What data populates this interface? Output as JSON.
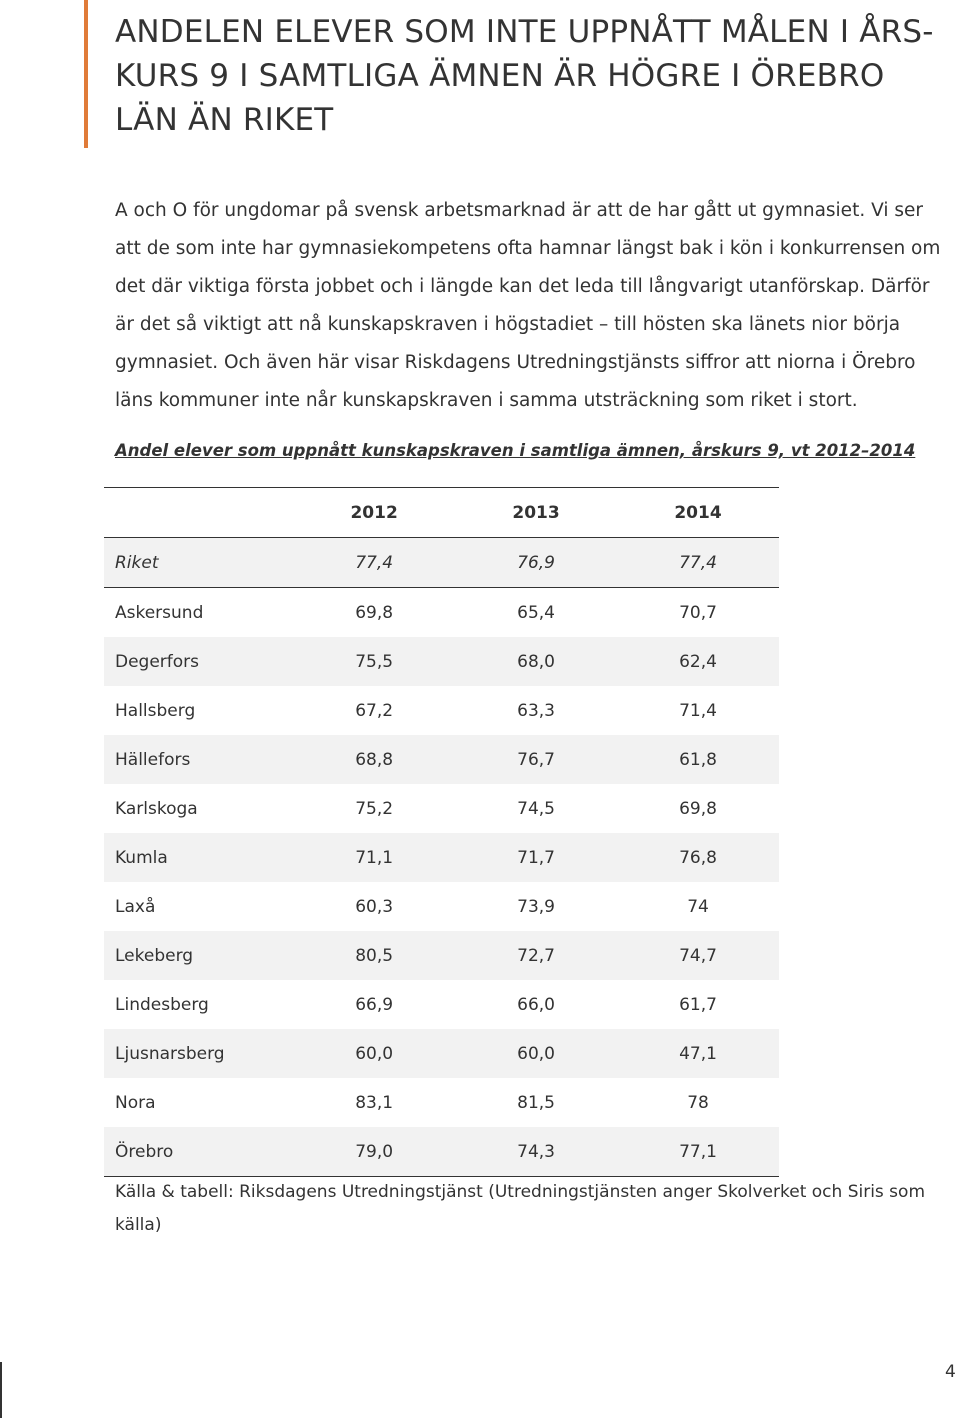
{
  "heading": "ANDELEN ELEVER SOM INTE UPPNÅTT MÅLEN I ÅRS-KURS 9 I SAMTLIGA ÄMNEN ÄR HÖGRE I ÖREBRO LÄN ÄN RIKET",
  "body_text": "A och O för ungdomar på svensk arbetsmarknad är att de har gått ut gymnasiet. Vi ser att de som inte har gymnasiekompetens ofta hamnar längst bak i kön i konkurrensen om det där viktiga första jobbet och i längde kan det leda till långvarigt utanförskap. Därför är det så viktigt att nå kunskapskraven i högstadiet – till hösten ska länets nior börja gymnasiet. Och även här visar Riskdagens Utredningstjänsts siffror att niorna i Örebro läns kommuner inte når kunskapskraven i samma utsträckning som riket i stort.",
  "table_caption": "Andel elever som uppnått kunskapskraven i samtliga ämnen, årskurs 9, vt 2012–2014",
  "table": {
    "headers": [
      "",
      "2012",
      "2013",
      "2014"
    ],
    "rows": [
      {
        "name": "Riket",
        "v2012": "77,4",
        "v2013": "76,9",
        "v2014": "77,4"
      },
      {
        "name": "Askersund",
        "v2012": "69,8",
        "v2013": "65,4",
        "v2014": "70,7"
      },
      {
        "name": "Degerfors",
        "v2012": "75,5",
        "v2013": "68,0",
        "v2014": "62,4"
      },
      {
        "name": "Hallsberg",
        "v2012": "67,2",
        "v2013": "63,3",
        "v2014": "71,4"
      },
      {
        "name": "Hällefors",
        "v2012": "68,8",
        "v2013": "76,7",
        "v2014": "61,8"
      },
      {
        "name": "Karlskoga",
        "v2012": "75,2",
        "v2013": "74,5",
        "v2014": "69,8"
      },
      {
        "name": "Kumla",
        "v2012": "71,1",
        "v2013": "71,7",
        "v2014": "76,8"
      },
      {
        "name": "Laxå",
        "v2012": "60,3",
        "v2013": "73,9",
        "v2014": "74"
      },
      {
        "name": "Lekeberg",
        "v2012": "80,5",
        "v2013": "72,7",
        "v2014": "74,7"
      },
      {
        "name": "Lindesberg",
        "v2012": "66,9",
        "v2013": "66,0",
        "v2014": "61,7"
      },
      {
        "name": "Ljusnarsberg",
        "v2012": "60,0",
        "v2013": "60,0",
        "v2014": "47,1"
      },
      {
        "name": "Nora",
        "v2012": "83,1",
        "v2013": "81,5",
        "v2014": "78"
      },
      {
        "name": "Örebro",
        "v2012": "79,0",
        "v2013": "74,3",
        "v2014": "77,1"
      }
    ]
  },
  "source_text": "Källa & tabell: Riksdagens Utredningstjänst (Utredningstjänsten anger Skolverket och Siris som källa)",
  "page_number": "4",
  "colors": {
    "accent": "#e07b39",
    "row_shade": "#f2f2f2",
    "text": "#333333"
  }
}
